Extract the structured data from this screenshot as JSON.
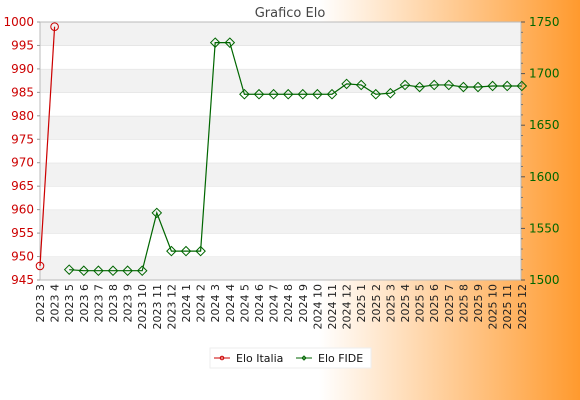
{
  "colors": {
    "background_left": "#ffffff",
    "background_right": "#ff9a2e",
    "plot_band_a": "#f2f2f2",
    "plot_band_b": "#ffffff",
    "series_italia": "#cc0000",
    "series_fide": "#006600"
  },
  "chart_data": {
    "type": "line",
    "title": "Grafico Elo",
    "grid": true,
    "legend_placement": "bottom-center",
    "categories": [
      "2023 3",
      "2023 4",
      "2023 5",
      "2023 6",
      "2023 7",
      "2023 8",
      "2023 9",
      "2023 10",
      "2023 11",
      "2023 12",
      "2024 1",
      "2024 2",
      "2024 3",
      "2024 4",
      "2024 5",
      "2024 6",
      "2024 7",
      "2024 8",
      "2024 9",
      "2024 10",
      "2024 11",
      "2024 12",
      "2025 1",
      "2025 2",
      "2025 3",
      "2025 4",
      "2025 5",
      "2025 6",
      "2025 7",
      "2025 8",
      "2025 9",
      "2025 10",
      "2025 11",
      "2025 12"
    ],
    "y_left": {
      "min": 945,
      "max": 1000,
      "ticks": [
        945,
        950,
        955,
        960,
        965,
        970,
        975,
        980,
        985,
        990,
        995,
        1000
      ]
    },
    "y_right": {
      "min": 1500,
      "max": 1750,
      "ticks": [
        1500,
        1550,
        1600,
        1650,
        1700,
        1750
      ]
    },
    "series": [
      {
        "name": "Elo Italia",
        "axis": "left",
        "marker": "circle",
        "values": [
          948,
          999,
          null,
          null,
          null,
          null,
          null,
          null,
          null,
          null,
          null,
          null,
          null,
          null,
          null,
          null,
          null,
          null,
          null,
          null,
          null,
          null,
          null,
          null,
          null,
          null,
          null,
          null,
          null,
          null,
          null,
          null,
          null,
          null
        ]
      },
      {
        "name": "Elo FIDE",
        "axis": "right",
        "marker": "diamond",
        "values": [
          null,
          null,
          1510,
          1509,
          1509,
          1509,
          1509,
          1509,
          1565,
          1528,
          1528,
          1528,
          1730,
          1730,
          1680,
          1680,
          1680,
          1680,
          1680,
          1680,
          1680,
          1690,
          1689,
          1680,
          1681,
          1689,
          1687,
          1689,
          1689,
          1687,
          1687,
          1688,
          1688,
          1688
        ]
      }
    ]
  }
}
